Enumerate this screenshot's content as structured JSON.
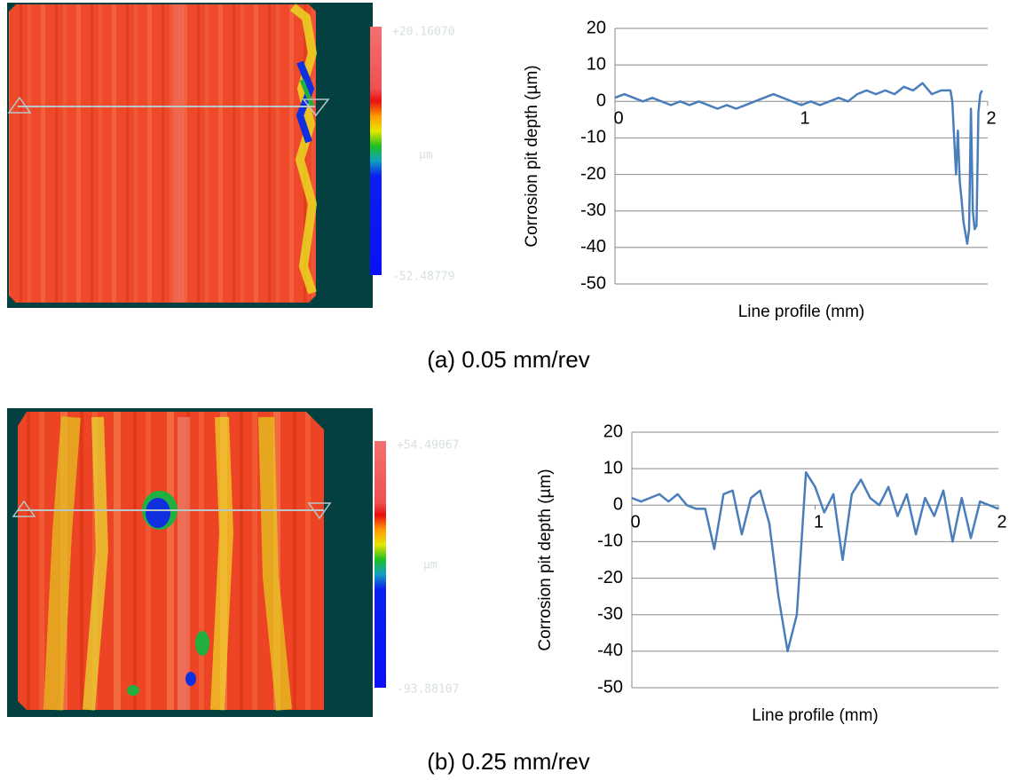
{
  "chart_data": [
    {
      "type": "line",
      "x_label": "Line profile (mm)",
      "y_label": "Corrosion pit depth (µm)",
      "caption": "(a) 0.05 mm/rev",
      "xlim": [
        0,
        2
      ],
      "xticks": [
        0,
        1,
        2
      ],
      "ylim": [
        -50,
        20
      ],
      "yticks": [
        -50,
        -40,
        -30,
        -20,
        -10,
        0,
        10,
        20
      ],
      "grid": true,
      "series": [
        {
          "color": "#4a7ebb",
          "x": [
            0,
            0.05,
            0.1,
            0.15,
            0.2,
            0.25,
            0.3,
            0.35,
            0.4,
            0.45,
            0.5,
            0.55,
            0.6,
            0.65,
            0.7,
            0.75,
            0.8,
            0.85,
            0.9,
            0.95,
            1.0,
            1.05,
            1.1,
            1.15,
            1.2,
            1.25,
            1.3,
            1.35,
            1.4,
            1.45,
            1.5,
            1.55,
            1.6,
            1.65,
            1.7,
            1.75,
            1.8,
            1.81,
            1.83,
            1.84,
            1.85,
            1.86,
            1.87,
            1.88,
            1.89,
            1.9,
            1.91,
            1.92,
            1.93,
            1.94,
            1.95,
            1.96,
            1.97
          ],
          "values": [
            1,
            2,
            1,
            0,
            1,
            0,
            -1,
            0,
            -1,
            0,
            -1,
            -2,
            -1,
            -2,
            -1,
            0,
            1,
            2,
            1,
            0,
            -1,
            0,
            -1,
            0,
            1,
            0,
            2,
            3,
            2,
            3,
            2,
            4,
            3,
            5,
            2,
            3,
            3,
            0,
            -20,
            -8,
            -22,
            -27,
            -33,
            -36,
            -39,
            -35,
            -2,
            -30,
            -35,
            -34,
            -3,
            2,
            3
          ]
        }
      ]
    },
    {
      "type": "line",
      "x_label": "Line profile (mm)",
      "y_label": "Corrosion pit depth (µm)",
      "caption": "(b) 0.25 mm/rev",
      "xlim": [
        0,
        2
      ],
      "xticks": [
        0,
        1,
        2
      ],
      "ylim": [
        -50,
        20
      ],
      "yticks": [
        -50,
        -40,
        -30,
        -20,
        -10,
        0,
        10,
        20
      ],
      "grid": true,
      "series": [
        {
          "color": "#4a7ebb",
          "x": [
            0,
            0.05,
            0.1,
            0.15,
            0.2,
            0.25,
            0.3,
            0.35,
            0.4,
            0.45,
            0.5,
            0.55,
            0.6,
            0.65,
            0.7,
            0.75,
            0.8,
            0.85,
            0.9,
            0.95,
            1.0,
            1.05,
            1.1,
            1.15,
            1.2,
            1.25,
            1.3,
            1.35,
            1.4,
            1.45,
            1.5,
            1.55,
            1.6,
            1.65,
            1.7,
            1.75,
            1.8,
            1.85,
            1.9,
            1.95,
            2.0
          ],
          "values": [
            2,
            1,
            2,
            3,
            1,
            3,
            0,
            -1,
            -1,
            -12,
            3,
            4,
            -8,
            2,
            4,
            -5,
            -25,
            -40,
            -30,
            9,
            5,
            -2,
            3,
            -15,
            3,
            7,
            2,
            0,
            5,
            -3,
            3,
            -8,
            2,
            -3,
            4,
            -10,
            2,
            -9,
            1,
            0,
            -1
          ]
        }
      ]
    }
  ],
  "images": [
    {
      "scale_max": "+20.16070",
      "scale_unit": "µm",
      "scale_min": "-52.48779"
    },
    {
      "scale_max": "+54.49067",
      "scale_unit": "µm",
      "scale_min": "-93.88107"
    }
  ]
}
